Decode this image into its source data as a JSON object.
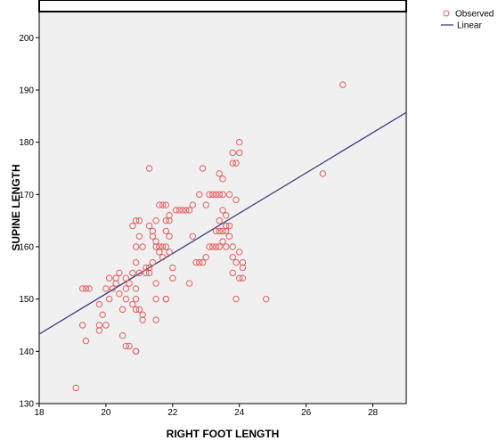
{
  "chart_data": {
    "type": "scatter",
    "xlabel": "RIGHT FOOT LENGTH",
    "ylabel": "SUPINE LENGTH",
    "xlim": [
      18,
      29
    ],
    "ylim": [
      130,
      205
    ],
    "x_ticks": [
      18,
      20,
      22,
      24,
      26,
      28
    ],
    "y_ticks": [
      130,
      140,
      150,
      160,
      170,
      180,
      190,
      200
    ],
    "grid": false,
    "legend_position": "top-right",
    "legend": [
      {
        "label": "Observed",
        "marker": "circle",
        "color": "#e06060"
      },
      {
        "label": "Linear",
        "marker": "line",
        "color": "#34317a"
      }
    ],
    "colors": {
      "plot_background": "#f0f0f0",
      "points": "#e06060",
      "fit_line": "#34317a"
    },
    "fit_line": {
      "x": [
        18,
        29
      ],
      "y": [
        143.3,
        185.7
      ]
    },
    "points": [
      [
        19.1,
        133
      ],
      [
        19.3,
        145
      ],
      [
        19.3,
        152
      ],
      [
        19.4,
        142
      ],
      [
        19.4,
        152
      ],
      [
        19.5,
        152
      ],
      [
        19.8,
        145
      ],
      [
        19.8,
        144
      ],
      [
        19.8,
        149
      ],
      [
        19.9,
        147
      ],
      [
        20.0,
        145
      ],
      [
        20.0,
        152
      ],
      [
        20.1,
        150
      ],
      [
        20.1,
        154
      ],
      [
        20.2,
        152
      ],
      [
        20.3,
        154
      ],
      [
        20.3,
        153
      ],
      [
        20.4,
        155
      ],
      [
        20.4,
        151
      ],
      [
        20.5,
        148
      ],
      [
        20.5,
        143
      ],
      [
        20.6,
        141
      ],
      [
        20.6,
        150
      ],
      [
        20.6,
        152
      ],
      [
        20.6,
        154
      ],
      [
        20.7,
        141
      ],
      [
        20.7,
        153
      ],
      [
        20.8,
        149
      ],
      [
        20.8,
        155
      ],
      [
        20.8,
        164
      ],
      [
        20.9,
        148
      ],
      [
        20.9,
        150
      ],
      [
        20.9,
        152
      ],
      [
        20.9,
        157
      ],
      [
        20.9,
        160
      ],
      [
        20.9,
        165
      ],
      [
        20.9,
        140
      ],
      [
        20.9,
        140
      ],
      [
        21.0,
        155
      ],
      [
        21.0,
        162
      ],
      [
        21.0,
        165
      ],
      [
        21.0,
        148
      ],
      [
        21.1,
        147
      ],
      [
        21.1,
        146
      ],
      [
        21.1,
        160
      ],
      [
        21.2,
        156
      ],
      [
        21.2,
        155
      ],
      [
        21.3,
        155
      ],
      [
        21.3,
        156
      ],
      [
        21.3,
        164
      ],
      [
        21.3,
        175
      ],
      [
        21.4,
        157
      ],
      [
        21.4,
        163
      ],
      [
        21.4,
        162
      ],
      [
        21.5,
        160
      ],
      [
        21.5,
        161
      ],
      [
        21.5,
        153
      ],
      [
        21.5,
        150
      ],
      [
        21.5,
        146
      ],
      [
        21.5,
        165
      ],
      [
        21.6,
        168
      ],
      [
        21.6,
        160
      ],
      [
        21.6,
        159
      ],
      [
        21.7,
        158
      ],
      [
        21.7,
        160
      ],
      [
        21.7,
        168
      ],
      [
        21.8,
        165
      ],
      [
        21.8,
        163
      ],
      [
        21.8,
        160
      ],
      [
        21.8,
        150
      ],
      [
        21.8,
        150
      ],
      [
        21.8,
        168
      ],
      [
        21.9,
        166
      ],
      [
        21.9,
        165
      ],
      [
        21.9,
        162
      ],
      [
        21.9,
        159
      ],
      [
        22.0,
        154
      ],
      [
        22.0,
        156
      ],
      [
        22.1,
        167
      ],
      [
        22.2,
        167
      ],
      [
        22.3,
        167
      ],
      [
        22.4,
        167
      ],
      [
        22.5,
        167
      ],
      [
        22.5,
        153
      ],
      [
        22.6,
        168
      ],
      [
        22.6,
        162
      ],
      [
        22.7,
        157
      ],
      [
        22.8,
        157
      ],
      [
        22.8,
        170
      ],
      [
        22.9,
        175
      ],
      [
        22.9,
        157
      ],
      [
        23.0,
        168
      ],
      [
        23.0,
        158
      ],
      [
        23.1,
        160
      ],
      [
        23.1,
        170
      ],
      [
        23.2,
        160
      ],
      [
        23.2,
        170
      ],
      [
        23.3,
        160
      ],
      [
        23.3,
        170
      ],
      [
        23.3,
        163
      ],
      [
        23.4,
        160
      ],
      [
        23.4,
        163
      ],
      [
        23.4,
        165
      ],
      [
        23.4,
        170
      ],
      [
        23.4,
        174
      ],
      [
        23.5,
        161
      ],
      [
        23.5,
        163
      ],
      [
        23.5,
        167
      ],
      [
        23.5,
        170
      ],
      [
        23.5,
        173
      ],
      [
        23.6,
        160
      ],
      [
        23.6,
        164
      ],
      [
        23.6,
        166
      ],
      [
        23.6,
        163
      ],
      [
        23.7,
        162
      ],
      [
        23.7,
        164
      ],
      [
        23.7,
        170
      ],
      [
        23.8,
        155
      ],
      [
        23.8,
        158
      ],
      [
        23.8,
        160
      ],
      [
        23.8,
        176
      ],
      [
        23.8,
        178
      ],
      [
        23.9,
        150
      ],
      [
        23.9,
        157
      ],
      [
        23.9,
        169
      ],
      [
        23.9,
        176
      ],
      [
        24.0,
        154
      ],
      [
        24.0,
        159
      ],
      [
        24.0,
        178
      ],
      [
        24.0,
        180
      ],
      [
        24.1,
        156
      ],
      [
        24.1,
        157
      ],
      [
        24.1,
        154
      ],
      [
        24.8,
        150
      ],
      [
        26.5,
        174
      ],
      [
        27.1,
        191
      ]
    ]
  }
}
